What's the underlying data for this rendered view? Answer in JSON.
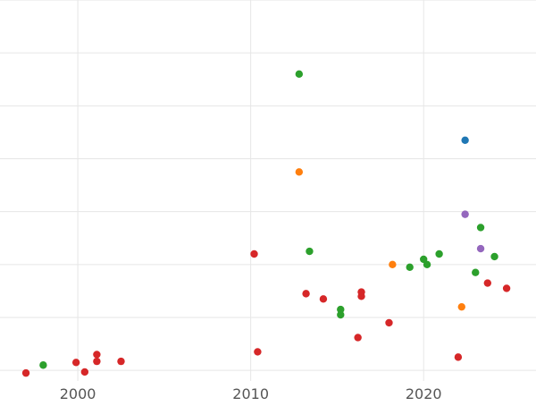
{
  "chart_data": {
    "type": "scatter",
    "title": "",
    "xlabel": "",
    "ylabel": "",
    "xlim": [
      1995.5,
      2026.5
    ],
    "ylim": [
      0,
      7.2
    ],
    "x_ticks": [
      2000,
      2010,
      2020
    ],
    "x_tick_labels": [
      "2000",
      "2010",
      "2020"
    ],
    "y_ticks": [
      0.2,
      1.2,
      2.2,
      3.2,
      4.2,
      5.2,
      6.2,
      7.2
    ],
    "grid": true,
    "legend": "none",
    "series": [
      {
        "color": "#1f77b4",
        "points": [
          [
            2022.4,
            4.55
          ]
        ]
      },
      {
        "color": "#ff7f0e",
        "points": [
          [
            2012.8,
            3.95
          ],
          [
            2018.2,
            2.2
          ],
          [
            2022.2,
            1.4
          ]
        ]
      },
      {
        "color": "#2ca02c",
        "points": [
          [
            1998.0,
            0.3
          ],
          [
            2012.8,
            5.8
          ],
          [
            2013.4,
            2.45
          ],
          [
            2015.2,
            1.35
          ],
          [
            2015.2,
            1.25
          ],
          [
            2019.2,
            2.15
          ],
          [
            2020.0,
            2.3
          ],
          [
            2020.2,
            2.2
          ],
          [
            2020.9,
            2.4
          ],
          [
            2023.0,
            2.05
          ],
          [
            2023.3,
            2.9
          ],
          [
            2024.1,
            2.35
          ]
        ]
      },
      {
        "color": "#d62728",
        "points": [
          [
            1997.0,
            0.15
          ],
          [
            1999.9,
            0.35
          ],
          [
            2000.4,
            0.17
          ],
          [
            2001.1,
            0.5
          ],
          [
            2001.1,
            0.37
          ],
          [
            2002.5,
            0.37
          ],
          [
            2010.2,
            2.4
          ],
          [
            2010.4,
            0.55
          ],
          [
            2013.2,
            1.65
          ],
          [
            2014.2,
            1.55
          ],
          [
            2016.2,
            0.82
          ],
          [
            2016.4,
            1.68
          ],
          [
            2016.4,
            1.6
          ],
          [
            2018.0,
            1.1
          ],
          [
            2022.0,
            0.45
          ],
          [
            2023.7,
            1.85
          ],
          [
            2024.8,
            1.75
          ]
        ]
      },
      {
        "color": "#9467bd",
        "points": [
          [
            2022.4,
            3.15
          ],
          [
            2023.3,
            2.5
          ]
        ]
      }
    ]
  }
}
